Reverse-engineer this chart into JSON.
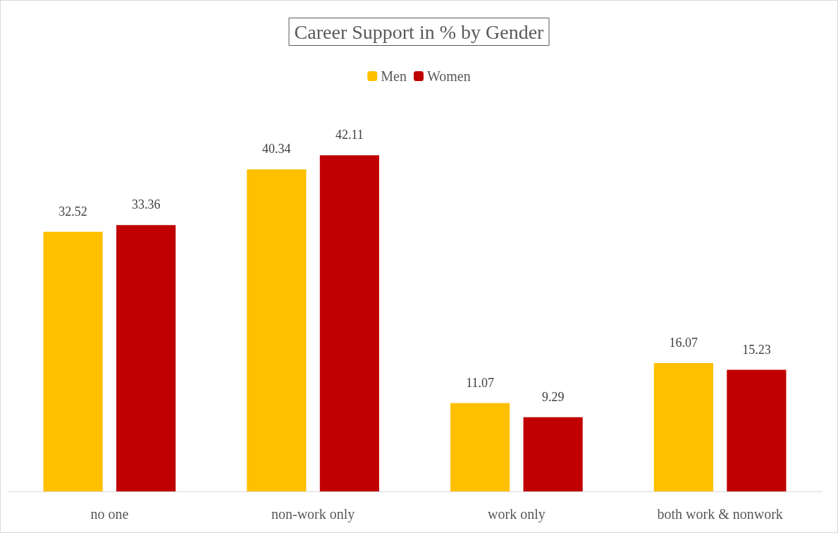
{
  "chart_data": {
    "type": "bar",
    "title": "Career Support in % by Gender",
    "categories": [
      "no one",
      "non-work only",
      "work only",
      "both work & nonwork"
    ],
    "series": [
      {
        "name": "Men",
        "color": "#ffc000",
        "values": [
          32.52,
          40.34,
          11.07,
          16.07
        ]
      },
      {
        "name": "Women",
        "color": "#c00000",
        "values": [
          33.36,
          42.11,
          9.29,
          15.23
        ]
      }
    ],
    "data_labels": true,
    "legend": "top",
    "grid": false
  }
}
